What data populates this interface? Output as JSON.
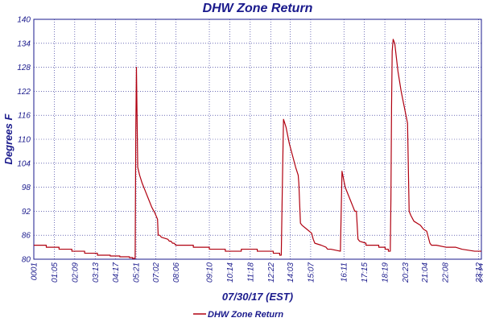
{
  "chart_data": {
    "type": "line",
    "title": "DHW Zone Return",
    "xlabel": "07/30/17 (EST)",
    "ylabel": "Degrees F",
    "ylim": [
      80,
      140
    ],
    "yticks": [
      "80",
      "86",
      "92",
      "98",
      "104",
      "110",
      "116",
      "122",
      "128",
      "134",
      "140"
    ],
    "xlim": [
      1,
      1401
    ],
    "xtick_values": [
      1,
      65,
      129,
      193,
      257,
      321,
      382,
      446,
      550,
      614,
      678,
      742,
      803,
      867,
      971,
      1035,
      1099,
      1163,
      1224,
      1288,
      1392,
      1401
    ],
    "xticks": [
      "0001",
      "01:05",
      "02:09",
      "03:13",
      "04:17",
      "05:21",
      "07:02",
      "08:06",
      "09:10",
      "10:14",
      "11:18",
      "12:22",
      "14:03",
      "15:07",
      "16:11",
      "17:15",
      "18:19",
      "20:23",
      "21:04",
      "22:08",
      "23:12",
      "23:21"
    ],
    "grid": true,
    "legend_position": "bottom-left",
    "series": [
      {
        "name": "DHW Zone Return",
        "color": "#b00010",
        "x": [
          1,
          40,
          40,
          80,
          80,
          120,
          120,
          160,
          160,
          200,
          200,
          240,
          240,
          270,
          270,
          300,
          300,
          310,
          310,
          318,
          320,
          322,
          326,
          332,
          340,
          350,
          360,
          370,
          380,
          388,
          390,
          395,
          400,
          420,
          425,
          430,
          435,
          440,
          445,
          450,
          500,
          500,
          550,
          550,
          600,
          600,
          650,
          650,
          700,
          700,
          750,
          750,
          770,
          770,
          775,
          778,
          782,
          790,
          800,
          810,
          820,
          828,
          830,
          835,
          840,
          855,
          870,
          875,
          880,
          900,
          915,
          920,
          930,
          960,
          960,
          965,
          975,
          990,
          1000,
          1005,
          1010,
          1015,
          1020,
          1040,
          1040,
          1080,
          1080,
          1100,
          1100,
          1110,
          1110,
          1116,
          1118,
          1120,
          1122,
          1125,
          1130,
          1140,
          1150,
          1160,
          1170,
          1175,
          1180,
          1190,
          1210,
          1220,
          1230,
          1240,
          1240,
          1245,
          1260,
          1290,
          1320,
          1340,
          1340,
          1380,
          1380,
          1401
        ],
        "y": [
          83.5,
          83.5,
          83,
          83,
          82.5,
          82.5,
          82,
          82,
          81.5,
          81.5,
          81,
          81,
          80.8,
          80.8,
          80.6,
          80.6,
          80.4,
          80.4,
          80.2,
          80.2,
          112,
          128,
          103,
          101,
          99,
          97,
          95,
          93,
          91.5,
          90,
          86,
          86,
          85.5,
          85,
          84.5,
          84.5,
          84,
          84,
          83.5,
          83.5,
          83.5,
          83,
          83,
          82.5,
          82.5,
          82,
          82,
          82.5,
          82.5,
          82,
          82,
          81.5,
          81.5,
          81,
          81,
          96,
          115,
          113,
          109,
          106,
          103,
          101,
          99,
          89,
          88.5,
          87.5,
          86.5,
          85,
          84,
          83.5,
          83,
          82.5,
          82.5,
          82,
          82,
          102,
          98,
          95,
          93,
          92,
          92,
          85,
          84.5,
          84,
          83.5,
          83.5,
          83,
          83,
          82.5,
          82.5,
          82,
          82,
          95,
          118,
          132,
          135,
          134,
          127,
          122,
          118,
          114,
          92,
          91,
          89.5,
          88.5,
          87.5,
          87,
          84,
          84,
          83.5,
          83.5,
          83,
          83,
          82.5,
          82.5,
          82,
          82,
          82
        ]
      }
    ]
  }
}
